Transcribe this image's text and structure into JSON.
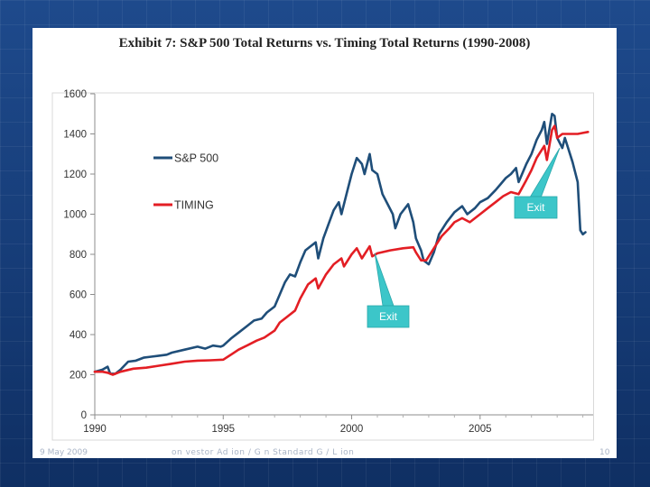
{
  "slide": {
    "footer_date": "9 May 2009",
    "footer_middle": "on  vestor Ad  ion / G  n Standard G / L  ion",
    "footer_page": "10"
  },
  "chart_data": {
    "type": "line",
    "title": "Exhibit 7: S&P 500 Total Returns vs. Timing Total Returns (1990-2008)",
    "xlabel": "",
    "ylabel": "",
    "xlim": [
      1990,
      2009.4
    ],
    "ylim": [
      0,
      1600
    ],
    "x_ticks": [
      1990,
      1995,
      2000,
      2005
    ],
    "y_ticks": [
      0,
      200,
      400,
      600,
      800,
      1000,
      1200,
      1400,
      1600
    ],
    "grid": false,
    "legend_position": "upper-left",
    "series": [
      {
        "name": "S&P 500",
        "color": "#1f4e79",
        "points": [
          [
            1990.0,
            215
          ],
          [
            1990.3,
            225
          ],
          [
            1990.5,
            240
          ],
          [
            1990.6,
            205
          ],
          [
            1990.8,
            205
          ],
          [
            1991.0,
            225
          ],
          [
            1991.3,
            265
          ],
          [
            1991.6,
            270
          ],
          [
            1991.9,
            285
          ],
          [
            1992.2,
            290
          ],
          [
            1992.5,
            295
          ],
          [
            1992.8,
            300
          ],
          [
            1993.0,
            310
          ],
          [
            1993.5,
            325
          ],
          [
            1994.0,
            340
          ],
          [
            1994.3,
            330
          ],
          [
            1994.6,
            345
          ],
          [
            1994.9,
            340
          ],
          [
            1995.0,
            345
          ],
          [
            1995.3,
            380
          ],
          [
            1995.6,
            410
          ],
          [
            1995.9,
            440
          ],
          [
            1996.2,
            470
          ],
          [
            1996.5,
            480
          ],
          [
            1996.7,
            510
          ],
          [
            1997.0,
            540
          ],
          [
            1997.2,
            600
          ],
          [
            1997.4,
            660
          ],
          [
            1997.6,
            700
          ],
          [
            1997.8,
            690
          ],
          [
            1998.0,
            760
          ],
          [
            1998.2,
            820
          ],
          [
            1998.4,
            840
          ],
          [
            1998.6,
            860
          ],
          [
            1998.7,
            780
          ],
          [
            1998.9,
            880
          ],
          [
            1999.1,
            950
          ],
          [
            1999.3,
            1020
          ],
          [
            1999.5,
            1060
          ],
          [
            1999.6,
            1000
          ],
          [
            1999.8,
            1100
          ],
          [
            2000.0,
            1200
          ],
          [
            2000.2,
            1280
          ],
          [
            2000.4,
            1250
          ],
          [
            2000.5,
            1200
          ],
          [
            2000.7,
            1300
          ],
          [
            2000.8,
            1220
          ],
          [
            2001.0,
            1200
          ],
          [
            2001.2,
            1100
          ],
          [
            2001.4,
            1050
          ],
          [
            2001.6,
            1000
          ],
          [
            2001.7,
            930
          ],
          [
            2001.9,
            1000
          ],
          [
            2002.2,
            1050
          ],
          [
            2002.4,
            960
          ],
          [
            2002.5,
            880
          ],
          [
            2002.7,
            820
          ],
          [
            2002.8,
            770
          ],
          [
            2003.0,
            750
          ],
          [
            2003.2,
            810
          ],
          [
            2003.4,
            900
          ],
          [
            2003.7,
            960
          ],
          [
            2004.0,
            1010
          ],
          [
            2004.3,
            1040
          ],
          [
            2004.5,
            1000
          ],
          [
            2004.8,
            1030
          ],
          [
            2005.0,
            1060
          ],
          [
            2005.3,
            1080
          ],
          [
            2005.6,
            1120
          ],
          [
            2005.8,
            1150
          ],
          [
            2006.0,
            1180
          ],
          [
            2006.2,
            1200
          ],
          [
            2006.4,
            1230
          ],
          [
            2006.5,
            1160
          ],
          [
            2006.8,
            1250
          ],
          [
            2007.0,
            1300
          ],
          [
            2007.2,
            1370
          ],
          [
            2007.4,
            1420
          ],
          [
            2007.5,
            1460
          ],
          [
            2007.6,
            1350
          ],
          [
            2007.8,
            1500
          ],
          [
            2007.9,
            1490
          ],
          [
            2008.0,
            1380
          ],
          [
            2008.2,
            1330
          ],
          [
            2008.3,
            1380
          ],
          [
            2008.5,
            1300
          ],
          [
            2008.6,
            1260
          ],
          [
            2008.8,
            1160
          ],
          [
            2008.9,
            920
          ],
          [
            2009.0,
            900
          ],
          [
            2009.1,
            910
          ]
        ]
      },
      {
        "name": "TIMING",
        "color": "#e31e24",
        "points": [
          [
            1990.0,
            215
          ],
          [
            1990.3,
            215
          ],
          [
            1990.5,
            210
          ],
          [
            1990.7,
            200
          ],
          [
            1991.0,
            215
          ],
          [
            1991.5,
            230
          ],
          [
            1992.0,
            235
          ],
          [
            1992.5,
            245
          ],
          [
            1993.0,
            255
          ],
          [
            1993.5,
            265
          ],
          [
            1994.0,
            270
          ],
          [
            1994.5,
            272
          ],
          [
            1995.0,
            275
          ],
          [
            1995.3,
            300
          ],
          [
            1995.6,
            325
          ],
          [
            1996.0,
            350
          ],
          [
            1996.3,
            370
          ],
          [
            1996.6,
            385
          ],
          [
            1997.0,
            420
          ],
          [
            1997.2,
            460
          ],
          [
            1997.5,
            490
          ],
          [
            1997.8,
            520
          ],
          [
            1998.0,
            580
          ],
          [
            1998.3,
            650
          ],
          [
            1998.6,
            680
          ],
          [
            1998.7,
            630
          ],
          [
            1999.0,
            700
          ],
          [
            1999.3,
            750
          ],
          [
            1999.6,
            780
          ],
          [
            1999.7,
            740
          ],
          [
            2000.0,
            800
          ],
          [
            2000.2,
            830
          ],
          [
            2000.4,
            780
          ],
          [
            2000.6,
            820
          ],
          [
            2000.7,
            840
          ],
          [
            2000.8,
            790
          ],
          [
            2001.0,
            805
          ],
          [
            2001.5,
            820
          ],
          [
            2002.0,
            830
          ],
          [
            2002.4,
            835
          ],
          [
            2002.5,
            810
          ],
          [
            2002.7,
            770
          ],
          [
            2002.9,
            770
          ],
          [
            2003.2,
            830
          ],
          [
            2003.5,
            890
          ],
          [
            2003.8,
            930
          ],
          [
            2004.0,
            960
          ],
          [
            2004.3,
            980
          ],
          [
            2004.6,
            960
          ],
          [
            2005.0,
            1000
          ],
          [
            2005.3,
            1030
          ],
          [
            2005.6,
            1060
          ],
          [
            2005.9,
            1090
          ],
          [
            2006.2,
            1110
          ],
          [
            2006.5,
            1100
          ],
          [
            2006.8,
            1170
          ],
          [
            2007.0,
            1220
          ],
          [
            2007.2,
            1280
          ],
          [
            2007.5,
            1340
          ],
          [
            2007.6,
            1270
          ],
          [
            2007.8,
            1420
          ],
          [
            2007.9,
            1440
          ],
          [
            2008.0,
            1380
          ],
          [
            2008.2,
            1400
          ],
          [
            2008.5,
            1400
          ],
          [
            2008.8,
            1400
          ],
          [
            2009.0,
            1405
          ],
          [
            2009.2,
            1410
          ]
        ]
      }
    ],
    "annotations": [
      {
        "text": "Exit",
        "target_x": 2000.9,
        "target_y": 805
      },
      {
        "text": "Exit",
        "target_x": 2008.1,
        "target_y": 1330
      }
    ]
  }
}
